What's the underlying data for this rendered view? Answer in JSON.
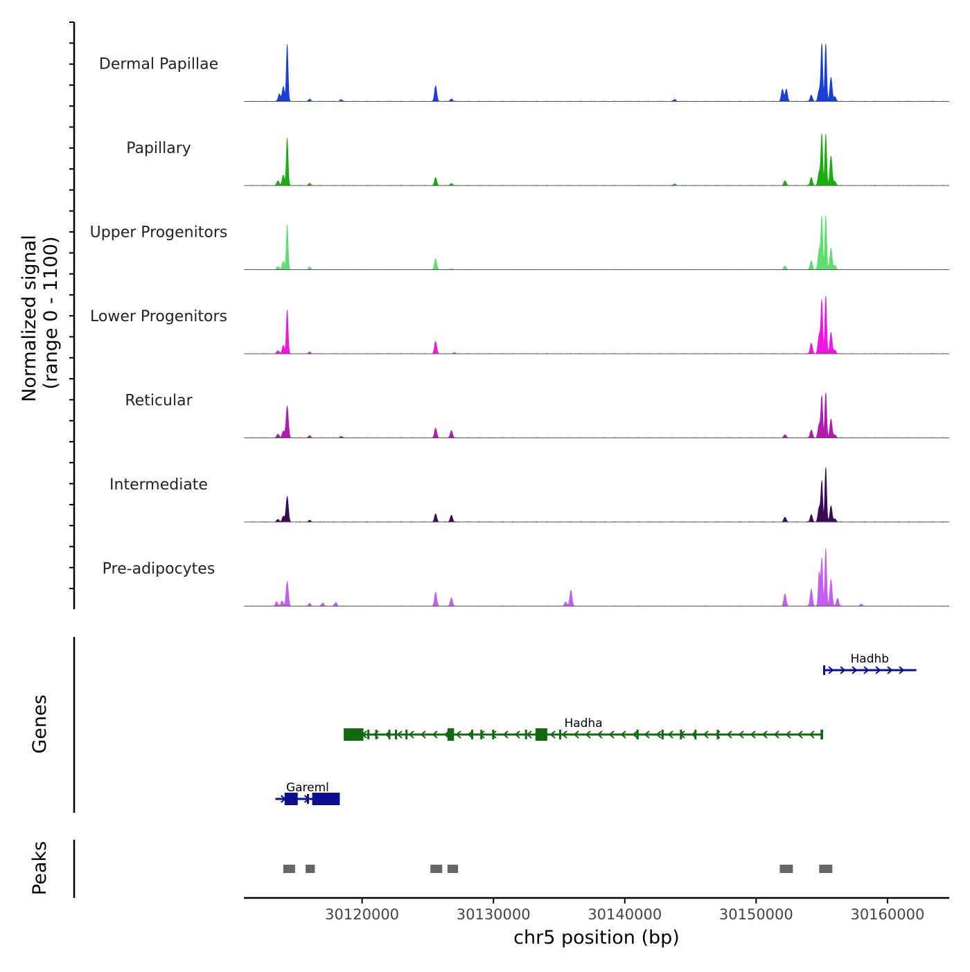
{
  "chart_data": {
    "type": "area",
    "title": "",
    "y_axis_label_line1": "Normalized signal",
    "y_axis_label_line2": "(range 0 - 1100)",
    "y_range": [
      0,
      1100
    ],
    "xlabel": "chr5 position (bp)",
    "x_range": [
      30111000,
      30164700
    ],
    "x_ticks": [
      30120000,
      30130000,
      30140000,
      30150000,
      30160000
    ],
    "x_tick_labels": [
      "30120000",
      "30130000",
      "30140000",
      "30150000",
      "30160000"
    ],
    "tracks": [
      {
        "name": "Dermal Papillae",
        "color": "#1a3fd6",
        "peaks": [
          [
            30114300,
            1080
          ],
          [
            30114000,
            280
          ],
          [
            30113700,
            140
          ],
          [
            30125600,
            290
          ],
          [
            30126800,
            50
          ],
          [
            30116000,
            40
          ],
          [
            30118400,
            35
          ],
          [
            30143800,
            40
          ],
          [
            30152000,
            230
          ],
          [
            30152300,
            230
          ],
          [
            30154200,
            120
          ],
          [
            30154800,
            220
          ],
          [
            30155000,
            1090
          ],
          [
            30155300,
            1100
          ],
          [
            30155700,
            450
          ],
          [
            30156000,
            90
          ]
        ]
      },
      {
        "name": "Papillary",
        "color": "#1aad0f",
        "peaks": [
          [
            30114300,
            900
          ],
          [
            30114000,
            200
          ],
          [
            30113600,
            90
          ],
          [
            30125600,
            150
          ],
          [
            30126800,
            40
          ],
          [
            30116000,
            40
          ],
          [
            30143800,
            30
          ],
          [
            30152200,
            90
          ],
          [
            30154200,
            150
          ],
          [
            30154800,
            260
          ],
          [
            30155000,
            960
          ],
          [
            30155300,
            980
          ],
          [
            30155700,
            550
          ],
          [
            30156000,
            80
          ]
        ]
      },
      {
        "name": "Upper Progenitors",
        "color": "#5ede6e",
        "peaks": [
          [
            30114300,
            850
          ],
          [
            30114000,
            160
          ],
          [
            30113600,
            60
          ],
          [
            30125600,
            200
          ],
          [
            30126800,
            20
          ],
          [
            30116000,
            50
          ],
          [
            30152200,
            70
          ],
          [
            30154200,
            170
          ],
          [
            30154800,
            380
          ],
          [
            30155000,
            990
          ],
          [
            30155300,
            1040
          ],
          [
            30155700,
            400
          ],
          [
            30156000,
            80
          ]
        ]
      },
      {
        "name": "Lower Progenitors",
        "color": "#ee16e0",
        "peaks": [
          [
            30114300,
            830
          ],
          [
            30114000,
            160
          ],
          [
            30113600,
            60
          ],
          [
            30125600,
            230
          ],
          [
            30116000,
            30
          ],
          [
            30127000,
            20
          ],
          [
            30154200,
            200
          ],
          [
            30154800,
            360
          ],
          [
            30155000,
            1000
          ],
          [
            30155300,
            1100
          ],
          [
            30155700,
            400
          ],
          [
            30156000,
            70
          ]
        ]
      },
      {
        "name": "Reticular",
        "color": "#b11bad",
        "peaks": [
          [
            30114300,
            600
          ],
          [
            30114000,
            130
          ],
          [
            30113600,
            70
          ],
          [
            30125600,
            180
          ],
          [
            30126800,
            140
          ],
          [
            30116000,
            40
          ],
          [
            30118400,
            30
          ],
          [
            30152200,
            60
          ],
          [
            30154200,
            150
          ],
          [
            30154800,
            260
          ],
          [
            30155000,
            780
          ],
          [
            30155300,
            860
          ],
          [
            30155700,
            350
          ],
          [
            30156000,
            60
          ]
        ]
      },
      {
        "name": "Intermediate",
        "color": "#3a0a55",
        "peaks": [
          [
            30114300,
            480
          ],
          [
            30114000,
            110
          ],
          [
            30113600,
            50
          ],
          [
            30125600,
            150
          ],
          [
            30126800,
            130
          ],
          [
            30116000,
            30
          ],
          [
            30152200,
            90
          ],
          [
            30154200,
            140
          ],
          [
            30154800,
            280
          ],
          [
            30155000,
            760
          ],
          [
            30155300,
            1040
          ],
          [
            30155700,
            300
          ],
          [
            30156000,
            60
          ]
        ]
      },
      {
        "name": "Pre-adipocytes",
        "color": "#c25ef2",
        "peaks": [
          [
            30114300,
            470
          ],
          [
            30113900,
            100
          ],
          [
            30113500,
            80
          ],
          [
            30125600,
            260
          ],
          [
            30126800,
            160
          ],
          [
            30116000,
            50
          ],
          [
            30117000,
            60
          ],
          [
            30118000,
            70
          ],
          [
            30135900,
            300
          ],
          [
            30135500,
            80
          ],
          [
            30152200,
            230
          ],
          [
            30154200,
            320
          ],
          [
            30154800,
            640
          ],
          [
            30155000,
            910
          ],
          [
            30155300,
            1100
          ],
          [
            30155700,
            500
          ],
          [
            30156200,
            150
          ],
          [
            30158000,
            40
          ]
        ]
      }
    ]
  },
  "genes_panel": {
    "label": "Genes",
    "genes": [
      {
        "name": "Hadhb",
        "color": "#0d0d8f",
        "start": 30155100,
        "end": 30162200,
        "strand": "+",
        "row": 1,
        "exons": [
          [
            30155100,
            30155160
          ]
        ]
      },
      {
        "name": "Hadha",
        "color": "#136912",
        "start": 30118600,
        "end": 30155100,
        "strand": "-",
        "row": 2,
        "exons": [
          [
            30118600,
            30120100
          ],
          [
            30120400,
            30120500
          ],
          [
            30121000,
            30121100
          ],
          [
            30122000,
            30122080
          ],
          [
            30122500,
            30122650
          ],
          [
            30123300,
            30123360
          ],
          [
            30126500,
            30127000
          ],
          [
            30128300,
            30128360
          ],
          [
            30129000,
            30129060
          ],
          [
            30129900,
            30129960
          ],
          [
            30132400,
            30132460
          ],
          [
            30133200,
            30134100
          ],
          [
            30135000,
            30135060
          ],
          [
            30140900,
            30140960
          ],
          [
            30142800,
            30142860
          ],
          [
            30144200,
            30144260
          ],
          [
            30145300,
            30145360
          ],
          [
            30147000,
            30147060
          ],
          [
            30154900,
            30155100
          ]
        ]
      },
      {
        "name": "Gareml",
        "color": "#0d0d8f",
        "start": 30113400,
        "end": 30118300,
        "strand": "+",
        "row": 3,
        "exons": [
          [
            30114100,
            30115100
          ],
          [
            30115800,
            30115900
          ],
          [
            30116200,
            30118300
          ]
        ]
      }
    ]
  },
  "peaks_panel": {
    "label": "Peaks",
    "color": "#666666",
    "regions": [
      [
        30114000,
        30114900
      ],
      [
        30115700,
        30116400
      ],
      [
        30125200,
        30126100
      ],
      [
        30126500,
        30127300
      ],
      [
        30151800,
        30152800
      ],
      [
        30154800,
        30155800
      ]
    ]
  }
}
